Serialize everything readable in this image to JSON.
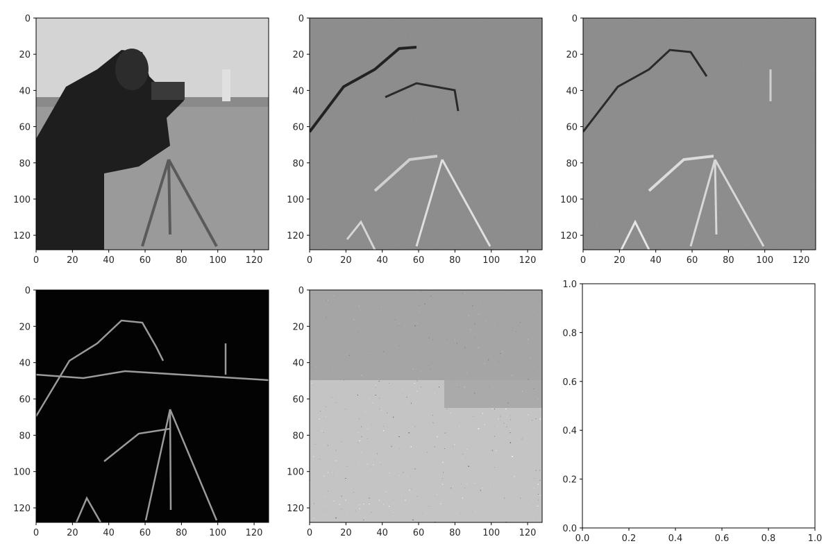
{
  "figure": {
    "layout": "2x3 grid of image panels",
    "background": "#ffffff"
  },
  "chart_data": [
    {
      "type": "heatmap",
      "content": "grayscale photograph of a cameraman operating a camera on a tripod",
      "colormap": "gray",
      "xlim": [
        0,
        128
      ],
      "ylim": [
        128,
        0
      ],
      "xticks": [
        0,
        20,
        40,
        60,
        80,
        100,
        120
      ],
      "yticks": [
        0,
        20,
        40,
        60,
        80,
        100,
        120
      ]
    },
    {
      "type": "heatmap",
      "content": "horizontal gradient (vertical edges) of the cameraman image, embossed look",
      "colormap": "gray",
      "xlim": [
        0,
        128
      ],
      "ylim": [
        128,
        0
      ],
      "xticks": [
        0,
        20,
        40,
        60,
        80,
        100,
        120
      ],
      "yticks": [
        0,
        20,
        40,
        60,
        80,
        100,
        120
      ]
    },
    {
      "type": "heatmap",
      "content": "vertical gradient of the cameraman image, embossed look",
      "colormap": "gray",
      "xlim": [
        0,
        128
      ],
      "ylim": [
        128,
        0
      ],
      "xticks": [
        0,
        20,
        40,
        60,
        80,
        100,
        120
      ],
      "yticks": [
        0,
        20,
        40,
        60,
        80,
        100,
        120
      ]
    },
    {
      "type": "heatmap",
      "content": "gradient magnitude of the cameraman image, bright edges on black",
      "colormap": "gray",
      "xlim": [
        0,
        128
      ],
      "ylim": [
        128,
        0
      ],
      "xticks": [
        0,
        20,
        40,
        60,
        80,
        100,
        120
      ],
      "yticks": [
        0,
        20,
        40,
        60,
        80,
        100,
        120
      ]
    },
    {
      "type": "heatmap",
      "content": "gradient orientation of the cameraman image, noisy salt-and-pepper texture",
      "colormap": "gray",
      "xlim": [
        0,
        128
      ],
      "ylim": [
        128,
        0
      ],
      "xticks": [
        0,
        20,
        40,
        60,
        80,
        100,
        120
      ],
      "yticks": [
        0,
        20,
        40,
        60,
        80,
        100,
        120
      ]
    },
    {
      "type": "scatter",
      "content": "empty axes",
      "x": [],
      "y": [],
      "xlim": [
        0.0,
        1.0
      ],
      "ylim": [
        0.0,
        1.0
      ],
      "xticks": [
        "0.0",
        "0.2",
        "0.4",
        "0.6",
        "0.8",
        "1.0"
      ],
      "yticks": [
        "0.0",
        "0.2",
        "0.4",
        "0.6",
        "0.8",
        "1.0"
      ]
    }
  ]
}
